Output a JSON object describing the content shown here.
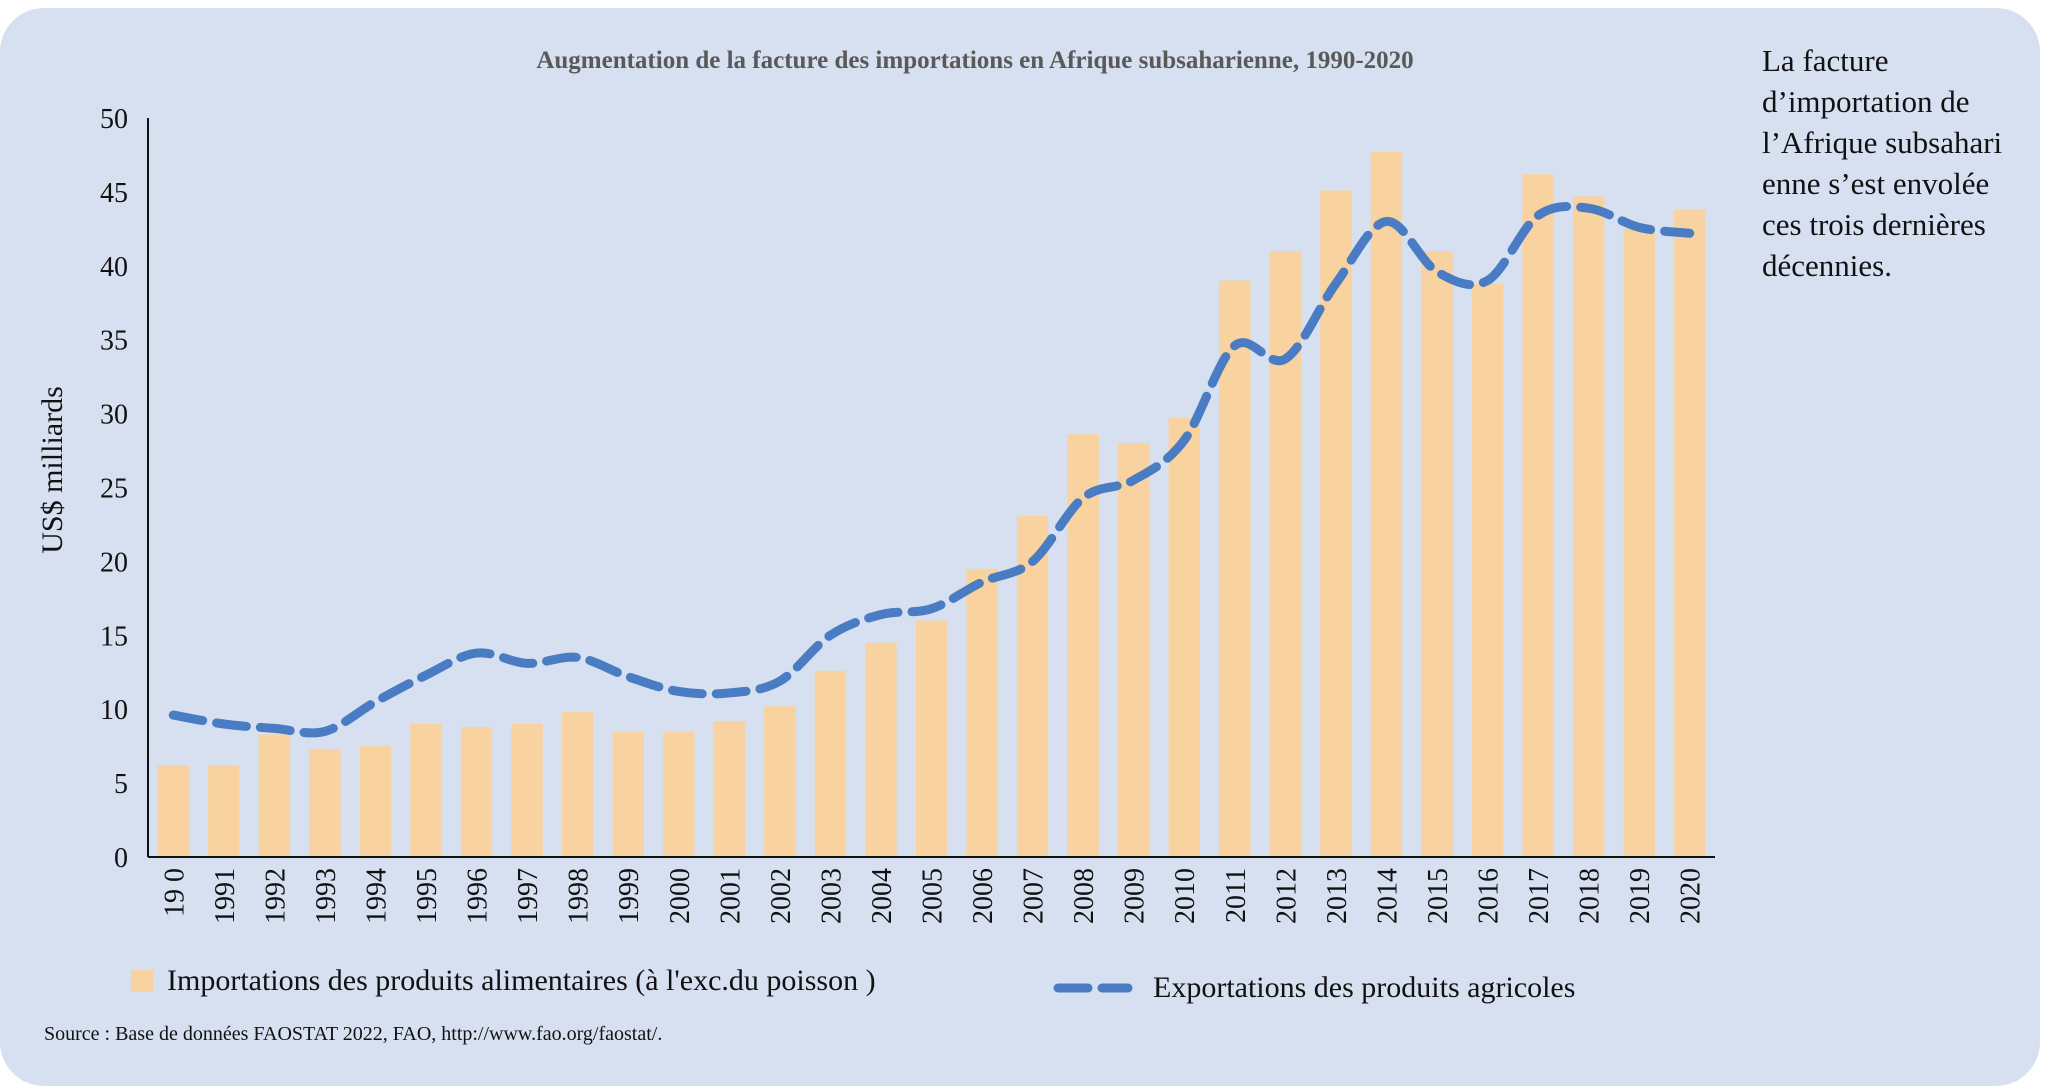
{
  "chart_data": {
    "type": "bar",
    "title": "Augmentation de la facture des importations en Afrique subsaharienne, 1990-2020",
    "ylabel": "US$ milliards",
    "xlabel": "",
    "ylim": [
      0,
      50
    ],
    "yticks": [
      "0",
      "5",
      "10",
      "15",
      "20",
      "25",
      "30",
      "35",
      "40",
      "45",
      "50"
    ],
    "categories": [
      "19 0",
      "1991",
      "1992",
      "1993",
      "1994",
      "1995",
      "1996",
      "1997",
      "1998",
      "1999",
      "2000",
      "2001",
      "2002",
      "2003",
      "2004",
      "2005",
      "2006",
      "2007",
      "2008",
      "2009",
      "2010",
      "2011",
      "2012",
      "2013",
      "2014",
      "2015",
      "2016",
      "2017",
      "2018",
      "2019",
      "2020"
    ],
    "series": [
      {
        "name": "Importations des produits alimentaires (à l'exc.du poisson )",
        "kind": "bar",
        "color": "#f8d3a0",
        "values": [
          6.2,
          6.2,
          8.3,
          7.3,
          7.5,
          9.0,
          8.8,
          9.0,
          9.8,
          8.5,
          8.5,
          9.2,
          10.2,
          12.6,
          14.5,
          16.0,
          19.5,
          23.1,
          28.6,
          28.0,
          29.7,
          39.0,
          41.0,
          45.1,
          47.7,
          41.0,
          38.8,
          46.2,
          44.7,
          42.5,
          43.8
        ]
      },
      {
        "name": "Exportations des produits agricoles",
        "kind": "line-dashed",
        "color": "#4a7cc4",
        "values": [
          9.6,
          9.0,
          8.7,
          8.5,
          10.5,
          12.3,
          13.8,
          13.1,
          13.5,
          12.2,
          11.2,
          11.1,
          11.9,
          15.0,
          16.4,
          16.8,
          18.6,
          20.0,
          24.3,
          25.5,
          28.2,
          34.6,
          33.7,
          38.8,
          43.0,
          39.6,
          39.0,
          43.4,
          43.9,
          42.6,
          42.2
        ]
      }
    ],
    "legend": "bottom",
    "grid": false
  },
  "side_note": [
    "La facture",
    "d’importation de",
    "l’Afrique subsahari",
    "enne s’est envolée",
    "ces trois dernières",
    "décennies."
  ],
  "source": "Source :  Base de données FAOSTAT 2022, FAO, http://www.fao.org/faostat/."
}
